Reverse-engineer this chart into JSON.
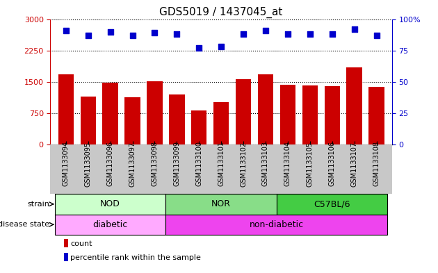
{
  "title": "GDS5019 / 1437045_at",
  "samples": [
    "GSM1133094",
    "GSM1133095",
    "GSM1133096",
    "GSM1133097",
    "GSM1133098",
    "GSM1133099",
    "GSM1133100",
    "GSM1133101",
    "GSM1133102",
    "GSM1133103",
    "GSM1133104",
    "GSM1133105",
    "GSM1133106",
    "GSM1133107",
    "GSM1133108"
  ],
  "counts": [
    1680,
    1150,
    1480,
    1130,
    1510,
    1200,
    820,
    1020,
    1560,
    1680,
    1430,
    1410,
    1400,
    1850,
    1380
  ],
  "percentiles": [
    91,
    87,
    90,
    87,
    89,
    88,
    77,
    78,
    88,
    91,
    88,
    88,
    88,
    92,
    87
  ],
  "bar_color": "#cc0000",
  "dot_color": "#0000cc",
  "ylim_left": [
    0,
    3000
  ],
  "ylim_right": [
    0,
    100
  ],
  "yticks_left": [
    0,
    750,
    1500,
    2250,
    3000
  ],
  "yticks_right": [
    0,
    25,
    50,
    75,
    100
  ],
  "strain_groups": [
    {
      "label": "NOD",
      "start": 0,
      "end": 5,
      "color": "#ccffcc"
    },
    {
      "label": "NOR",
      "start": 5,
      "end": 10,
      "color": "#88dd88"
    },
    {
      "label": "C57BL/6",
      "start": 10,
      "end": 15,
      "color": "#44cc44"
    }
  ],
  "disease_groups": [
    {
      "label": "diabetic",
      "start": 0,
      "end": 5,
      "color": "#ffaaff"
    },
    {
      "label": "non-diabetic",
      "start": 5,
      "end": 15,
      "color": "#ee44ee"
    }
  ],
  "strain_row_label": "strain",
  "disease_row_label": "disease state",
  "legend_count_label": "count",
  "legend_percentile_label": "percentile rank within the sample",
  "background_color": "#ffffff",
  "ylabel_left_color": "#cc0000",
  "ylabel_right_color": "#0000cc",
  "tick_label_bg": "#c8c8c8",
  "label_fontsize": 8,
  "tick_fontsize": 7,
  "bar_width": 0.7
}
